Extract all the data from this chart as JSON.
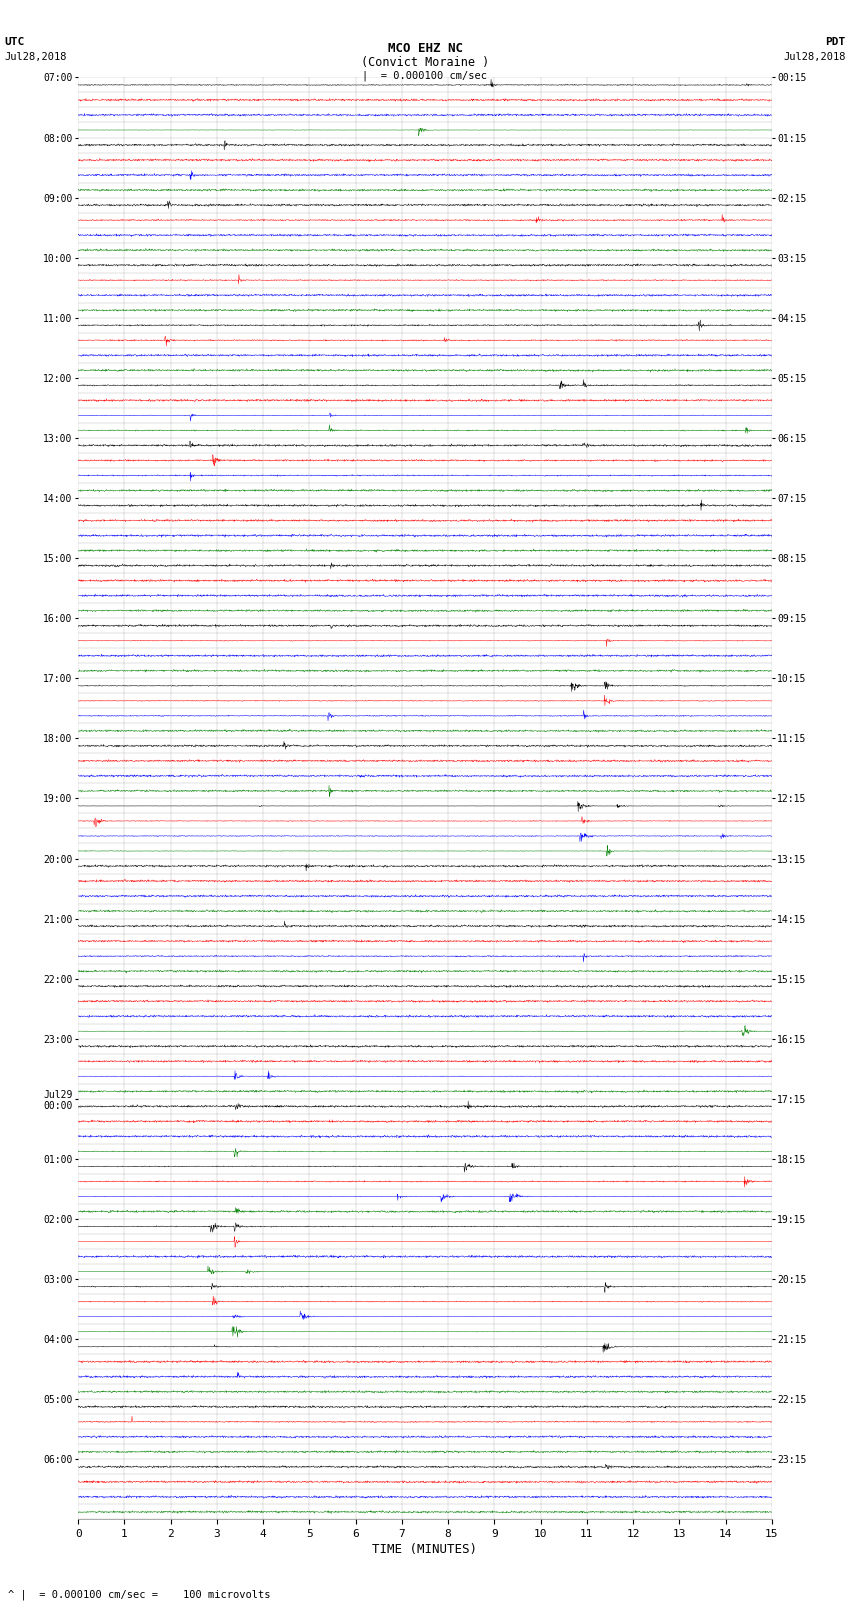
{
  "title_line1": "MCO EHZ NC",
  "title_line2": "(Convict Moraine )",
  "scale_text": "= 0.000100 cm/sec",
  "footer_text": "= 0.000100 cm/sec =    100 microvolts",
  "utc_label": "UTC",
  "utc_date": "Jul28,2018",
  "pdt_label": "PDT",
  "pdt_date": "Jul28,2018",
  "xlabel": "TIME (MINUTES)",
  "bg_color": "#ffffff",
  "plot_bg": "#ffffff",
  "colors": [
    "black",
    "red",
    "blue",
    "green"
  ],
  "num_rows": 96,
  "traces_per_hour": 4,
  "x_min": 0,
  "x_max": 15,
  "x_ticks": [
    0,
    1,
    2,
    3,
    4,
    5,
    6,
    7,
    8,
    9,
    10,
    11,
    12,
    13,
    14,
    15
  ],
  "utc_times_labeled": [
    "07:00",
    "08:00",
    "09:00",
    "10:00",
    "11:00",
    "12:00",
    "13:00",
    "14:00",
    "15:00",
    "16:00",
    "17:00",
    "18:00",
    "19:00",
    "20:00",
    "21:00",
    "22:00",
    "23:00",
    "Jul29\n00:00",
    "01:00",
    "02:00",
    "03:00",
    "04:00",
    "05:00",
    "06:00"
  ],
  "pdt_times_labeled": [
    "00:15",
    "01:15",
    "02:15",
    "03:15",
    "04:15",
    "05:15",
    "06:15",
    "07:15",
    "08:15",
    "09:15",
    "10:15",
    "11:15",
    "12:15",
    "13:15",
    "14:15",
    "15:15",
    "16:15",
    "17:15",
    "18:15",
    "19:15",
    "20:15",
    "21:15",
    "22:15",
    "23:15"
  ]
}
